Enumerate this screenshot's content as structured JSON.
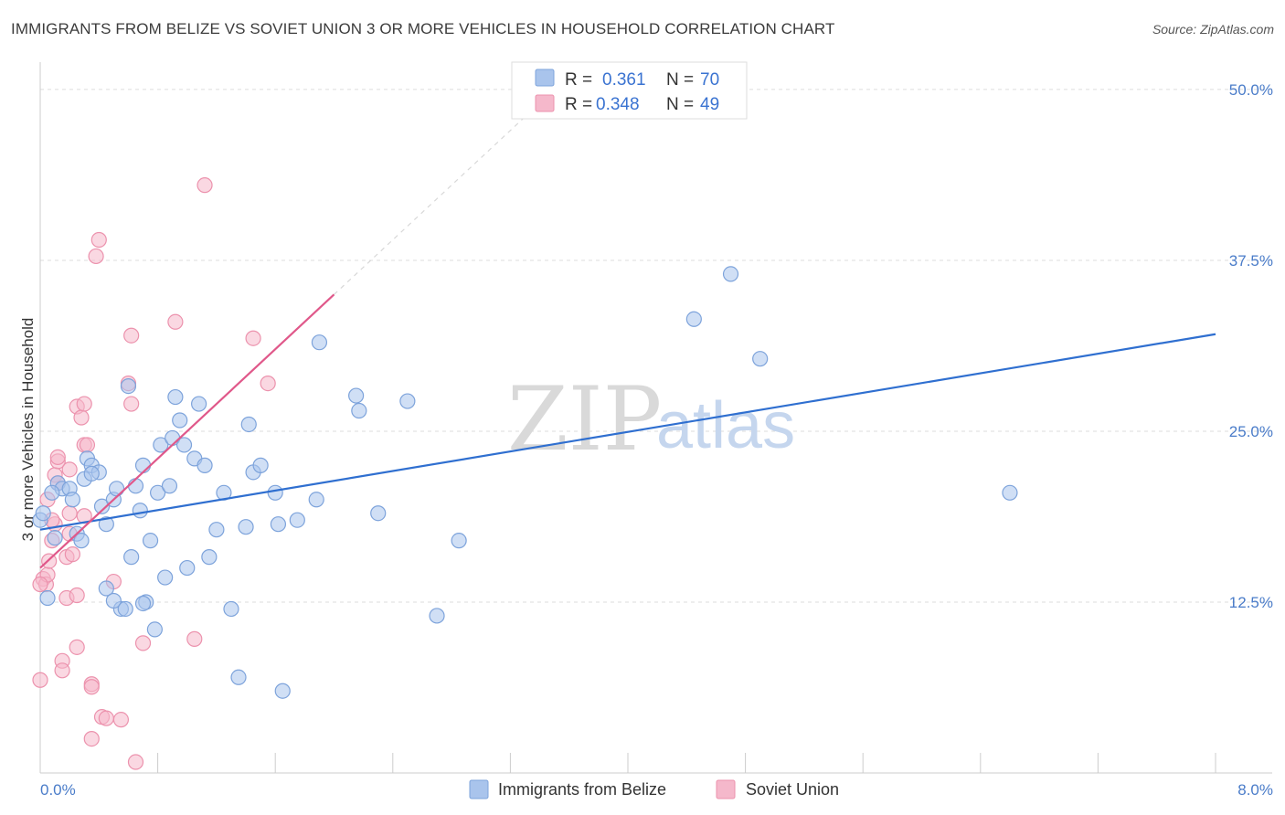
{
  "title": "IMMIGRANTS FROM BELIZE VS SOVIET UNION 3 OR MORE VEHICLES IN HOUSEHOLD CORRELATION CHART",
  "source": "Source: ZipAtlas.com",
  "watermark": {
    "zip": "ZIP",
    "atlas": "atlas"
  },
  "legend": {
    "belize": {
      "r_label": "R =",
      "r_value": "0.361",
      "n_label": "N =",
      "n_value": "70"
    },
    "soviet": {
      "r_label": "R =",
      "r_value": "0.348",
      "n_label": "N =",
      "n_value": "49"
    }
  },
  "bottom_legend": {
    "belize": "Immigrants from Belize",
    "soviet": "Soviet Union"
  },
  "colors": {
    "belize_fill": "#a9c4ec",
    "belize_stroke": "#7da3db",
    "belize_line": "#2f6fd0",
    "soviet_fill": "#f5b8cb",
    "soviet_stroke": "#ec92ad",
    "soviet_line": "#e0588a",
    "grid": "#dddddd",
    "axis_text": "#4a7cc9"
  },
  "chart_data": {
    "type": "scatter",
    "title": "IMMIGRANTS FROM BELIZE VS SOVIET UNION 3 OR MORE VEHICLES IN HOUSEHOLD CORRELATION CHART",
    "xlabel": "",
    "ylabel": "3 or more Vehicles in Household",
    "xlim": [
      0,
      8
    ],
    "ylim": [
      0,
      52
    ],
    "x_tick_labels": [
      "0.0%",
      "8.0%"
    ],
    "y_ticks": [
      12.5,
      25.0,
      37.5,
      50.0
    ],
    "y_tick_labels": [
      "12.5%",
      "25.0%",
      "37.5%",
      "50.0%"
    ],
    "grid": true,
    "legend_position": "top-center",
    "series": [
      {
        "name": "Immigrants from Belize",
        "trend": {
          "x": [
            0,
            8
          ],
          "y": [
            17.8,
            32.1
          ]
        },
        "points": [
          [
            0.0,
            18.5
          ],
          [
            0.02,
            19.0
          ],
          [
            0.05,
            12.8
          ],
          [
            0.1,
            17.2
          ],
          [
            0.12,
            21.2
          ],
          [
            0.15,
            20.8
          ],
          [
            0.2,
            20.8
          ],
          [
            0.25,
            17.5
          ],
          [
            0.28,
            17.0
          ],
          [
            0.22,
            20.0
          ],
          [
            0.3,
            21.5
          ],
          [
            0.32,
            23.0
          ],
          [
            0.35,
            22.5
          ],
          [
            0.4,
            22.0
          ],
          [
            0.42,
            19.5
          ],
          [
            0.45,
            18.2
          ],
          [
            0.5,
            20.0
          ],
          [
            0.52,
            20.8
          ],
          [
            0.55,
            12.0
          ],
          [
            0.45,
            13.5
          ],
          [
            0.6,
            28.3
          ],
          [
            0.62,
            15.8
          ],
          [
            0.65,
            21.0
          ],
          [
            0.68,
            19.2
          ],
          [
            0.7,
            22.5
          ],
          [
            0.72,
            12.5
          ],
          [
            0.75,
            17.0
          ],
          [
            0.78,
            10.5
          ],
          [
            0.8,
            20.5
          ],
          [
            0.82,
            24.0
          ],
          [
            0.85,
            14.3
          ],
          [
            0.88,
            21.0
          ],
          [
            0.9,
            24.5
          ],
          [
            0.92,
            27.5
          ],
          [
            0.95,
            25.8
          ],
          [
            0.98,
            24.0
          ],
          [
            1.0,
            15.0
          ],
          [
            1.05,
            23.0
          ],
          [
            1.08,
            27.0
          ],
          [
            1.12,
            22.5
          ],
          [
            1.15,
            15.8
          ],
          [
            1.2,
            17.8
          ],
          [
            1.25,
            20.5
          ],
          [
            1.3,
            12.0
          ],
          [
            1.35,
            7.0
          ],
          [
            1.4,
            18.0
          ],
          [
            1.42,
            25.5
          ],
          [
            1.45,
            22.0
          ],
          [
            1.5,
            22.5
          ],
          [
            1.6,
            20.5
          ],
          [
            1.62,
            18.2
          ],
          [
            1.65,
            6.0
          ],
          [
            1.75,
            18.5
          ],
          [
            1.88,
            20.0
          ],
          [
            1.9,
            31.5
          ],
          [
            2.15,
            27.6
          ],
          [
            2.17,
            26.5
          ],
          [
            2.3,
            19.0
          ],
          [
            2.5,
            27.2
          ],
          [
            2.7,
            11.5
          ],
          [
            2.85,
            17.0
          ],
          [
            0.35,
            21.9
          ],
          [
            0.5,
            12.6
          ],
          [
            0.58,
            12.0
          ],
          [
            0.7,
            12.4
          ],
          [
            4.45,
            33.2
          ],
          [
            4.7,
            36.5
          ],
          [
            4.9,
            30.3
          ],
          [
            6.6,
            20.5
          ],
          [
            0.08,
            20.5
          ]
        ]
      },
      {
        "name": "Soviet Union",
        "trend": {
          "x": [
            0,
            2.0
          ],
          "y": [
            15.0,
            35.0
          ]
        },
        "points": [
          [
            0.0,
            6.8
          ],
          [
            0.02,
            14.2
          ],
          [
            0.04,
            13.8
          ],
          [
            0.05,
            14.5
          ],
          [
            0.06,
            15.5
          ],
          [
            0.08,
            17.0
          ],
          [
            0.1,
            18.2
          ],
          [
            0.1,
            21.8
          ],
          [
            0.12,
            22.8
          ],
          [
            0.12,
            23.1
          ],
          [
            0.15,
            8.2
          ],
          [
            0.15,
            7.5
          ],
          [
            0.18,
            12.8
          ],
          [
            0.18,
            15.8
          ],
          [
            0.2,
            17.5
          ],
          [
            0.2,
            19.0
          ],
          [
            0.2,
            22.2
          ],
          [
            0.22,
            16.0
          ],
          [
            0.25,
            13.0
          ],
          [
            0.25,
            9.2
          ],
          [
            0.25,
            26.8
          ],
          [
            0.28,
            26.0
          ],
          [
            0.3,
            27.0
          ],
          [
            0.3,
            18.8
          ],
          [
            0.3,
            24.0
          ],
          [
            0.32,
            24.0
          ],
          [
            0.35,
            2.5
          ],
          [
            0.35,
            6.5
          ],
          [
            0.35,
            6.3
          ],
          [
            0.38,
            37.8
          ],
          [
            0.4,
            39.0
          ],
          [
            0.42,
            4.1
          ],
          [
            0.45,
            4.0
          ],
          [
            0.5,
            14.0
          ],
          [
            0.55,
            3.9
          ],
          [
            0.6,
            28.5
          ],
          [
            0.62,
            32.0
          ],
          [
            0.62,
            27.0
          ],
          [
            0.65,
            0.8
          ],
          [
            0.7,
            9.5
          ],
          [
            0.92,
            33.0
          ],
          [
            1.05,
            9.8
          ],
          [
            1.12,
            43.0
          ],
          [
            1.45,
            31.8
          ],
          [
            1.55,
            28.5
          ],
          [
            0.0,
            13.8
          ],
          [
            0.05,
            20.0
          ],
          [
            0.12,
            21.2
          ],
          [
            0.08,
            18.5
          ]
        ]
      }
    ]
  }
}
